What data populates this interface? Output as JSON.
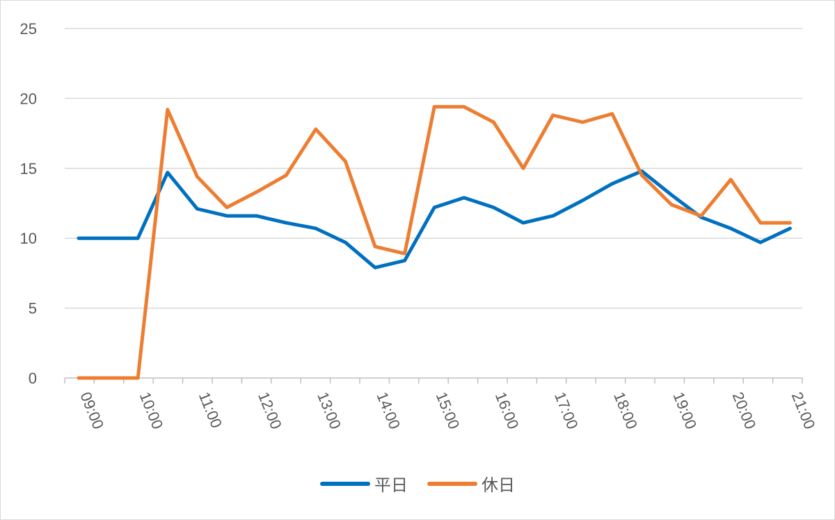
{
  "chart_data": {
    "type": "line",
    "x": [
      "09:00",
      "09:30",
      "10:00",
      "10:30",
      "11:00",
      "11:30",
      "12:00",
      "12:30",
      "13:00",
      "13:30",
      "14:00",
      "14:30",
      "15:00",
      "15:30",
      "16:00",
      "16:30",
      "17:00",
      "17:30",
      "18:00",
      "18:30",
      "19:00",
      "19:30",
      "20:00",
      "20:30",
      "21:00"
    ],
    "tick_labels": [
      "09:00",
      "10:00",
      "11:00",
      "12:00",
      "13:00",
      "14:00",
      "15:00",
      "16:00",
      "17:00",
      "18:00",
      "19:00",
      "20:00",
      "21:00"
    ],
    "ylim": [
      0,
      25
    ],
    "yticks": [
      0,
      5,
      10,
      15,
      20,
      25
    ],
    "grid": true,
    "legend_position": "bottom",
    "series": [
      {
        "name": "平日",
        "color": "#0070c0",
        "values": [
          10,
          10,
          10,
          14.7,
          12.1,
          11.6,
          11.6,
          11.1,
          10.7,
          9.7,
          7.9,
          8.4,
          12.2,
          12.9,
          12.2,
          11.1,
          11.6,
          12.7,
          13.9,
          14.8,
          13.1,
          11.5,
          10.7,
          9.7,
          10.7
        ]
      },
      {
        "name": "休日",
        "color": "#ed7d31",
        "values": [
          0,
          0,
          0,
          19.2,
          14.4,
          12.2,
          13.3,
          14.5,
          17.8,
          15.5,
          9.4,
          8.9,
          19.4,
          19.4,
          18.3,
          15,
          18.8,
          18.3,
          18.9,
          14.5,
          12.4,
          11.6,
          14.2,
          11.1,
          11.1
        ]
      }
    ]
  }
}
